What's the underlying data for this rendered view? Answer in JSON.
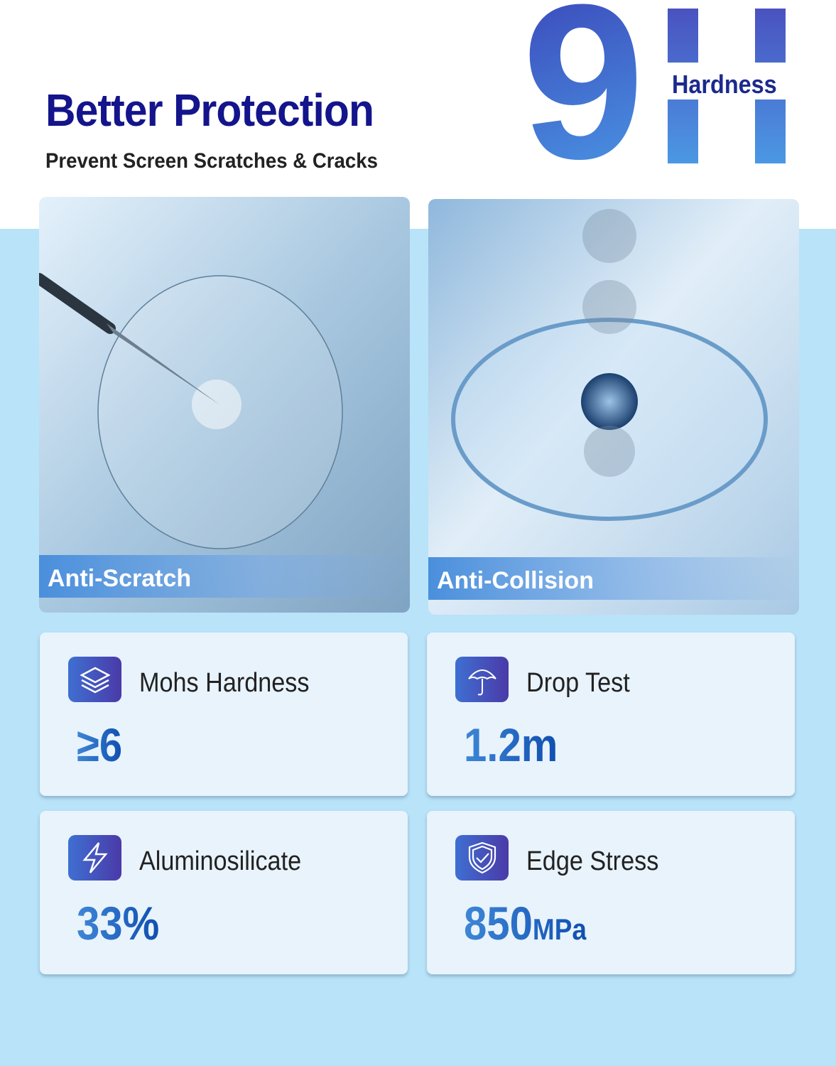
{
  "header": {
    "title": "Better Protection",
    "subtitle": "Prevent Screen Scratches & Cracks",
    "badge_number": "9",
    "badge_letter": "H",
    "badge_label": "Hardness"
  },
  "photos": [
    {
      "caption": "Anti-Scratch"
    },
    {
      "caption": "Anti-Collision"
    }
  ],
  "cards": [
    {
      "icon": "layers-icon",
      "label": "Mohs Hardness",
      "value": "≥6",
      "unit": ""
    },
    {
      "icon": "umbrella-icon",
      "label": "Drop Test",
      "value": "1.2m",
      "unit": ""
    },
    {
      "icon": "lightning-icon",
      "label": "Aluminosilicate",
      "value": "33%",
      "unit": ""
    },
    {
      "icon": "shield-check-icon",
      "label": "Edge Stress",
      "value": "850",
      "unit": "MPa"
    }
  ],
  "colors": {
    "title": "#14148c",
    "background": "#b8e3f9",
    "accent": "#3f6fd2"
  }
}
